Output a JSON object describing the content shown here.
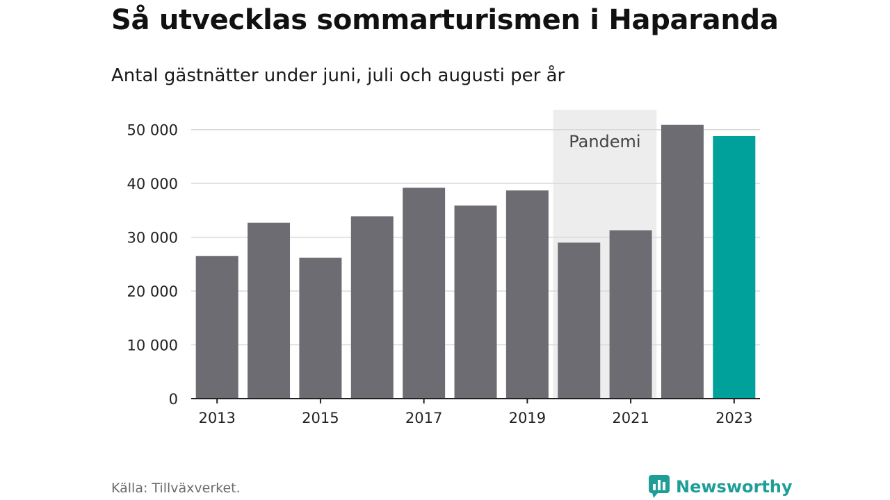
{
  "title": "Så utvecklas sommarturismen i Haparanda",
  "subtitle": "Antal gästnätter under juni, juli och augusti per år",
  "source": "Källa: Tillväxverket.",
  "brand": {
    "name": "Newsworthy",
    "icon": "newsworthy-logo-icon"
  },
  "colors": {
    "bar_default": "#6d6c72",
    "bar_highlight": "#00a19a",
    "pandemic_band": "#ededed",
    "gridline": "#d9d9d9",
    "axis": "#222222",
    "brand": "#1f9e98"
  },
  "chart_data": {
    "type": "bar",
    "title": "Så utvecklas sommarturismen i Haparanda",
    "subtitle": "Antal gästnätter under juni, juli och augusti per år",
    "xlabel": "",
    "ylabel": "",
    "categories": [
      "2013",
      "2014",
      "2015",
      "2016",
      "2017",
      "2018",
      "2019",
      "2020",
      "2021",
      "2022",
      "2023"
    ],
    "values": [
      26500,
      32700,
      26200,
      33900,
      39200,
      35900,
      38700,
      29000,
      31300,
      50900,
      48800
    ],
    "highlight": "2023",
    "ylim": [
      0,
      55000
    ],
    "yticks": [
      0,
      10000,
      20000,
      30000,
      40000,
      50000
    ],
    "ytick_labels": [
      "0",
      "10 000",
      "20 000",
      "30 000",
      "40 000",
      "50 000"
    ],
    "xtick_labels": [
      "2013",
      "2015",
      "2017",
      "2019",
      "2021",
      "2023"
    ],
    "grid": true,
    "annotation": {
      "label": "Pandemi",
      "from": "2020",
      "to": "2021"
    }
  }
}
